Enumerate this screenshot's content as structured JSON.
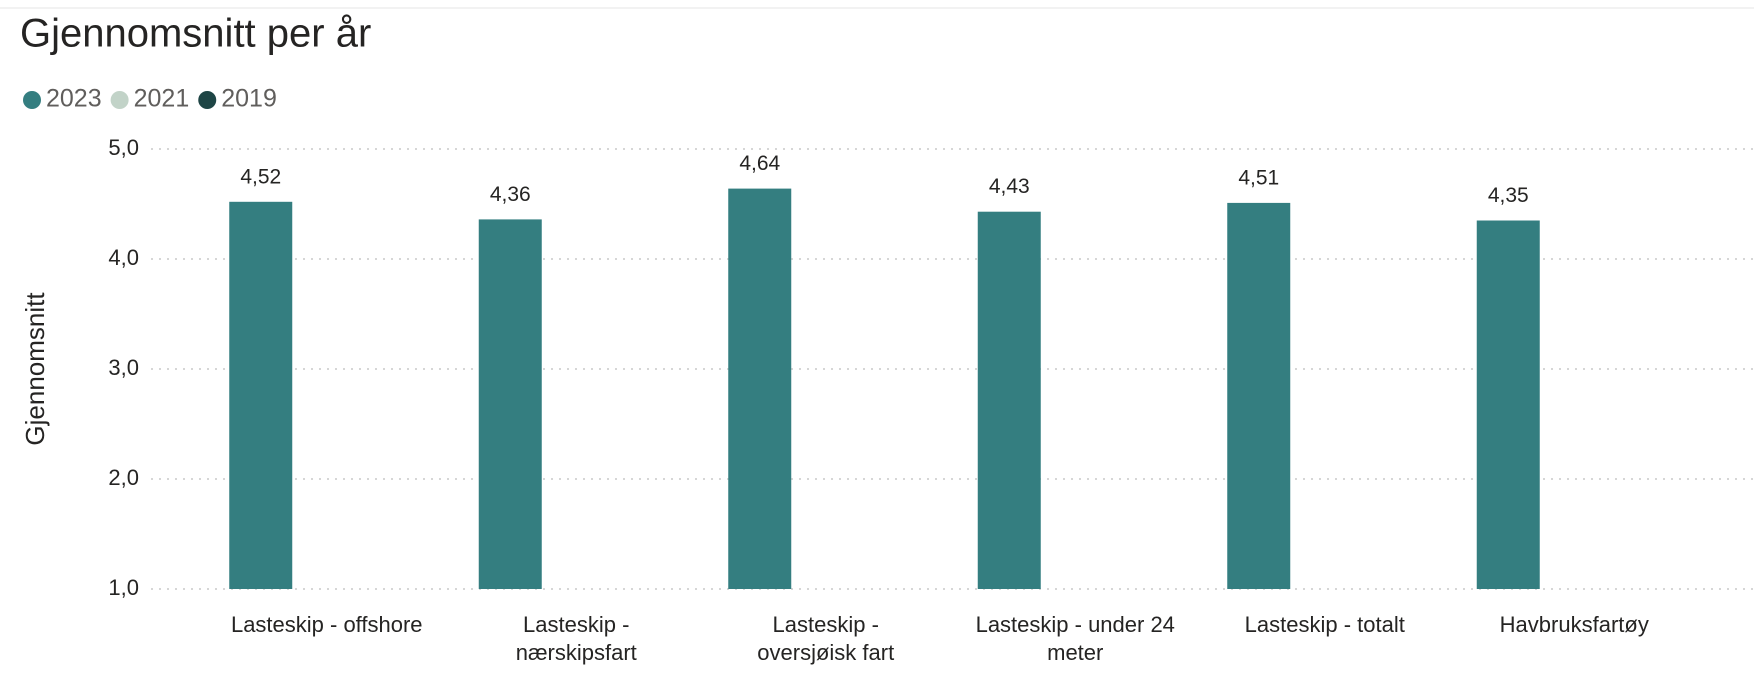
{
  "chart_data": {
    "type": "bar",
    "title": "Gjennomsnitt per år",
    "y_label": "Gjennomsnitt",
    "categories": [
      "Lasteskip - offshore",
      "Lasteskip - nærskipsfart",
      "Lasteskip - oversjøisk fart",
      "Lasteskip - under 24 meter",
      "Lasteskip - totalt",
      "Havbruksfartøy"
    ],
    "series": [
      {
        "name": "2023",
        "color": "#347e80",
        "values": [
          4.52,
          4.36,
          4.64,
          4.43,
          4.51,
          4.35
        ],
        "value_labels": [
          "4,52",
          "4,36",
          "4,64",
          "4,43",
          "4,51",
          "4,35"
        ]
      },
      {
        "name": "2021",
        "color": "#c2d3c8",
        "values": [
          null,
          null,
          null,
          null,
          null,
          null
        ]
      },
      {
        "name": "2019",
        "color": "#1e4545",
        "values": [
          null,
          null,
          null,
          null,
          null,
          null
        ]
      }
    ],
    "ylim": [
      1,
      5
    ],
    "yticks": [
      {
        "value": 1,
        "label": "1,0"
      },
      {
        "value": 2,
        "label": "2,0"
      },
      {
        "value": 3,
        "label": "3,0"
      },
      {
        "value": 4,
        "label": "4,0"
      },
      {
        "value": 5,
        "label": "5,0"
      }
    ],
    "grid": true,
    "legend": "top-left"
  }
}
